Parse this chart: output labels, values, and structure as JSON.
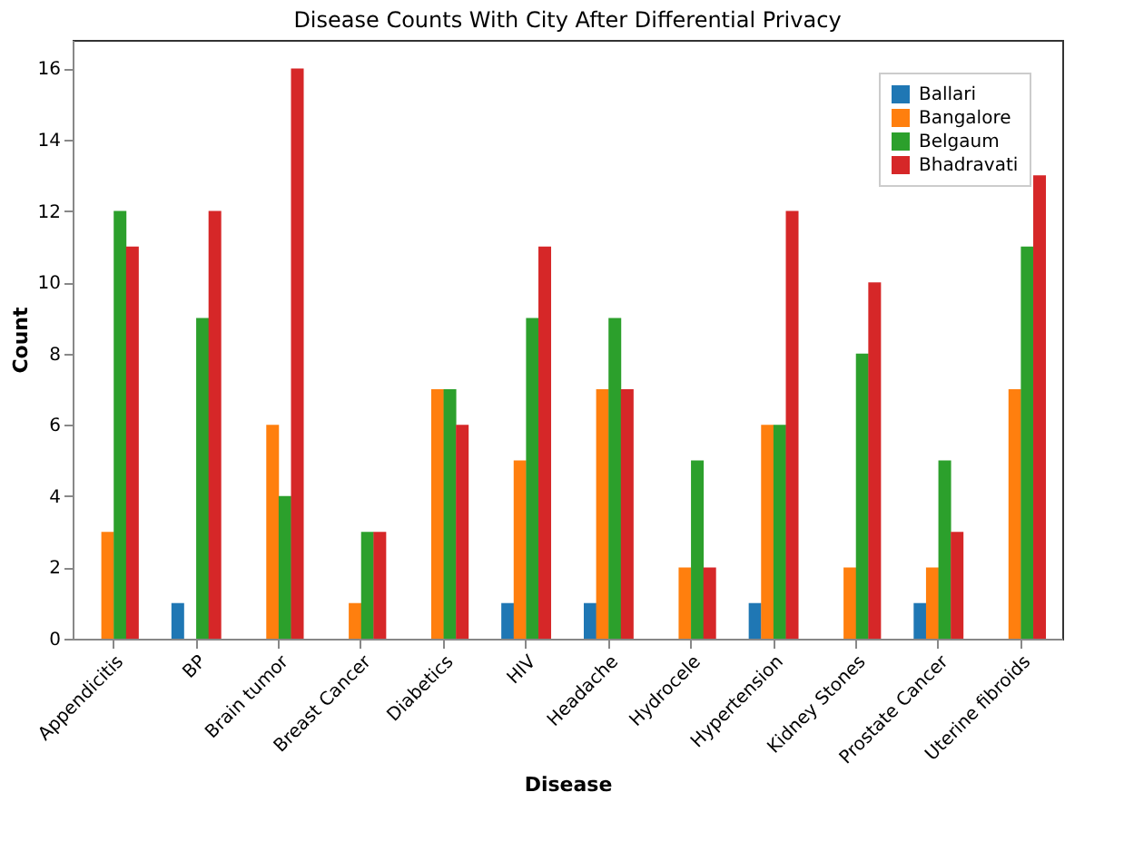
{
  "chart_data": {
    "type": "bar",
    "title": "Disease Counts With City After Differential Privacy",
    "xlabel": "Disease",
    "ylabel": "Count",
    "categories": [
      "Appendicitis",
      "BP",
      "Brain tumor",
      "Breast Cancer",
      "Diabetics",
      "HIV",
      "Headache",
      "Hydrocele",
      "Hypertension",
      "Kidney Stones",
      "Prostate Cancer",
      "Uterine fibroids"
    ],
    "series": [
      {
        "name": "Ballari",
        "color": "#1f77b4",
        "values": [
          0,
          1,
          0,
          0,
          0,
          1,
          1,
          0,
          1,
          0,
          1,
          0
        ]
      },
      {
        "name": "Bangalore",
        "color": "#ff7f0e",
        "values": [
          3,
          0,
          6,
          1,
          7,
          5,
          7,
          2,
          6,
          2,
          2,
          7
        ]
      },
      {
        "name": "Belgaum",
        "color": "#2ca02c",
        "values": [
          12,
          9,
          4,
          3,
          7,
          9,
          9,
          5,
          6,
          8,
          5,
          11
        ]
      },
      {
        "name": "Bhadravati",
        "color": "#d62728",
        "values": [
          11,
          12,
          16,
          3,
          6,
          11,
          7,
          2,
          12,
          10,
          3,
          13
        ]
      }
    ],
    "ylim": [
      0,
      16.8
    ],
    "yticks": [
      0,
      2,
      4,
      6,
      8,
      10,
      12,
      14,
      16
    ],
    "grid": false,
    "legend": "top right"
  }
}
